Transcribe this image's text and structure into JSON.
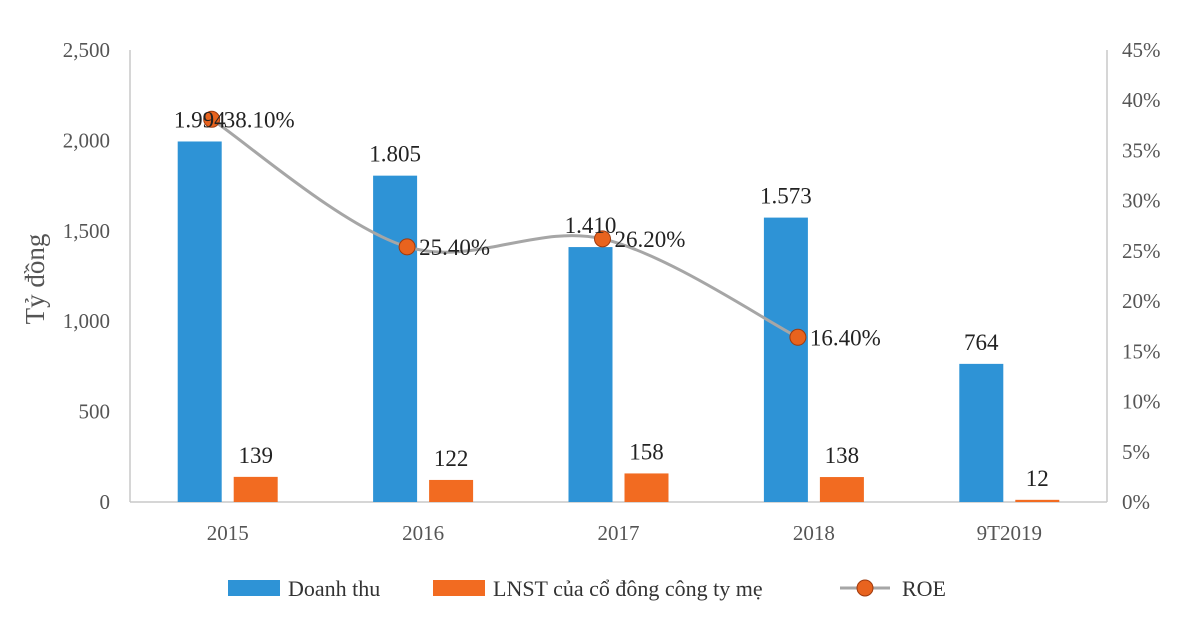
{
  "chart_data": {
    "type": "bar+line",
    "categories": [
      "2015",
      "2016",
      "2017",
      "2018",
      "9T2019"
    ],
    "series": [
      {
        "name": "Doanh thu",
        "type": "bar",
        "axis": "left",
        "color": "#2E93D6",
        "values": [
          1994,
          1805,
          1410,
          1573,
          764
        ],
        "labels": [
          "1.994",
          "1.805",
          "1.410",
          "1.573",
          "764"
        ]
      },
      {
        "name": "LNST của cổ đông công ty mẹ",
        "type": "bar",
        "axis": "left",
        "color": "#F26B21",
        "values": [
          139,
          122,
          158,
          138,
          12
        ],
        "labels": [
          "139",
          "122",
          "158",
          "138",
          "12"
        ]
      },
      {
        "name": "ROE",
        "type": "line",
        "axis": "right",
        "color": "#A6A6A6",
        "marker_color": "#E8631E",
        "values": [
          38.1,
          25.4,
          26.2,
          16.4,
          null
        ],
        "labels": [
          "38.10%",
          "25.40%",
          "26.20%",
          "16.40%",
          null
        ]
      }
    ],
    "ylabel": "Tỷ đồng",
    "ylim": [
      0,
      2500
    ],
    "yticks": [
      "0",
      "500",
      "1,000",
      "1,500",
      "2,000",
      "2,500"
    ],
    "ylim_right": [
      0,
      45
    ],
    "yticks_right": [
      "0%",
      "5%",
      "10%",
      "15%",
      "20%",
      "25%",
      "30%",
      "35%",
      "40%",
      "45%"
    ],
    "legend_position": "bottom",
    "grid": false
  }
}
